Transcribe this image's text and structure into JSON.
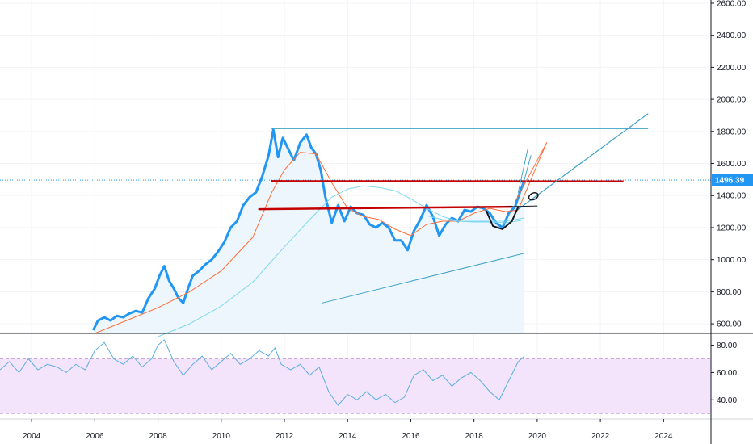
{
  "colors": {
    "price_line": "#2196f3",
    "ma_fast": "#ff6d3a",
    "ma_slow": "#7fd8ee",
    "resistance": "#c40000",
    "trendline": "#3fa2c8",
    "rsi_line": "#5aaee0",
    "rsi_band": "#f3e4fb",
    "rsi_band_border": "#c9a9d8",
    "current_price_label_bg": "#2196f3",
    "area_fill": "#eef6fd",
    "grid": "#f1f3f6",
    "current_price_dotted": "#2196f3"
  },
  "chart_data": [
    {
      "type": "line",
      "panel": "price",
      "x_axis": {
        "ticks": [
          "2004",
          "2006",
          "2008",
          "2010",
          "2012",
          "2014",
          "2016",
          "2018",
          "2020",
          "2022",
          "2024"
        ],
        "range": [
          2003.0,
          2025.5
        ]
      },
      "y_axis": {
        "position": "right",
        "range": [
          540,
          2620
        ],
        "ticks": [
          "600.00",
          "800.00",
          "1000.00",
          "1200.00",
          "1400.00",
          "1600.00",
          "1800.00",
          "2000.00",
          "2200.00",
          "2400.00",
          "2600.00"
        ],
        "tick_values": [
          600,
          800,
          1000,
          1200,
          1400,
          1600,
          1800,
          2000,
          2200,
          2400,
          2600
        ]
      },
      "current_price": {
        "label": "1496.39",
        "value": 1496.39
      },
      "series": [
        {
          "id": "price",
          "x": [
            2005.95,
            2006.1,
            2006.3,
            2006.5,
            2006.7,
            2006.9,
            2007.1,
            2007.3,
            2007.5,
            2007.7,
            2007.9,
            2008.05,
            2008.2,
            2008.35,
            2008.5,
            2008.65,
            2008.8,
            2008.95,
            2009.1,
            2009.3,
            2009.5,
            2009.7,
            2009.9,
            2010.1,
            2010.3,
            2010.5,
            2010.7,
            2010.9,
            2011.1,
            2011.3,
            2011.5,
            2011.65,
            2011.8,
            2011.95,
            2012.1,
            2012.3,
            2012.5,
            2012.7,
            2012.85,
            2013.0,
            2013.15,
            2013.3,
            2013.5,
            2013.7,
            2013.9,
            2014.1,
            2014.3,
            2014.5,
            2014.7,
            2014.9,
            2015.1,
            2015.3,
            2015.5,
            2015.7,
            2015.9,
            2016.1,
            2016.3,
            2016.5,
            2016.7,
            2016.9,
            2017.1,
            2017.3,
            2017.5,
            2017.7,
            2017.9,
            2018.1,
            2018.3,
            2018.5,
            2018.7,
            2018.9,
            2019.1,
            2019.3,
            2019.45,
            2019.6
          ],
          "y": [
            560,
            620,
            640,
            620,
            650,
            640,
            665,
            680,
            670,
            760,
            820,
            900,
            960,
            870,
            820,
            760,
            730,
            820,
            900,
            930,
            970,
            1000,
            1050,
            1110,
            1200,
            1240,
            1340,
            1390,
            1420,
            1520,
            1650,
            1810,
            1640,
            1760,
            1700,
            1620,
            1730,
            1780,
            1700,
            1660,
            1560,
            1390,
            1230,
            1340,
            1240,
            1330,
            1290,
            1280,
            1220,
            1200,
            1230,
            1200,
            1120,
            1120,
            1060,
            1180,
            1250,
            1340,
            1270,
            1150,
            1220,
            1260,
            1240,
            1310,
            1300,
            1330,
            1320,
            1290,
            1230,
            1200,
            1290,
            1330,
            1420,
            1496
          ]
        },
        {
          "id": "ma_fast",
          "x": [
            2006.0,
            2007.0,
            2008.0,
            2009.0,
            2010.0,
            2011.0,
            2011.6,
            2012.0,
            2012.5,
            2013.0,
            2013.5,
            2014.0,
            2014.5,
            2015.0,
            2015.5,
            2016.0,
            2016.5,
            2017.0,
            2017.5,
            2018.0,
            2018.5,
            2019.0,
            2019.4,
            2019.8,
            2020.3
          ],
          "y": [
            540,
            620,
            700,
            800,
            930,
            1140,
            1420,
            1560,
            1670,
            1660,
            1480,
            1320,
            1270,
            1250,
            1190,
            1150,
            1220,
            1240,
            1240,
            1290,
            1320,
            1300,
            1310,
            1500,
            1730
          ]
        },
        {
          "id": "ma_slow",
          "x": [
            2008.0,
            2009.0,
            2010.0,
            2011.0,
            2012.0,
            2012.8,
            2013.5,
            2014.0,
            2014.5,
            2015.0,
            2015.5,
            2016.0,
            2016.5,
            2017.0,
            2017.5,
            2018.0,
            2018.5,
            2019.0,
            2019.6
          ],
          "y": [
            520,
            600,
            710,
            860,
            1080,
            1250,
            1390,
            1440,
            1460,
            1450,
            1430,
            1380,
            1320,
            1270,
            1240,
            1240,
            1240,
            1240,
            1260
          ]
        },
        {
          "id": "ma_slow_short",
          "x": [
            2016.5,
            2017.0,
            2017.5,
            2018.0,
            2018.5,
            2019.0,
            2019.5
          ],
          "y": [
            1275,
            1250,
            1240,
            1235,
            1235,
            1230,
            1245
          ]
        }
      ],
      "drawings": [
        {
          "id": "horizontal-1815",
          "x": [
            2011.6,
            2023.5
          ],
          "y": [
            1817,
            1817
          ]
        },
        {
          "id": "resistance-upper",
          "x": [
            2011.6,
            2022.7
          ],
          "y": [
            1490,
            1488
          ]
        },
        {
          "id": "resistance-lower",
          "x": [
            2011.2,
            2019.2
          ],
          "y": [
            1315,
            1330
          ]
        },
        {
          "id": "rising-trendline",
          "x": [
            2013.2,
            2019.6
          ],
          "y": [
            730,
            1040
          ]
        },
        {
          "id": "long-breakout-line",
          "x": [
            2019.3,
            2023.5
          ],
          "y": [
            1300,
            1910
          ]
        },
        {
          "id": "short-steep-line",
          "x": [
            2019.3,
            2020.3
          ],
          "y": [
            1360,
            1730
          ]
        },
        {
          "id": "short-ray",
          "x": [
            2019.0,
            2020.0
          ],
          "y": [
            1330,
            1335
          ]
        },
        {
          "id": "cup-curve",
          "x": [
            2018.4,
            2018.6,
            2018.9,
            2019.2,
            2019.4
          ],
          "y": [
            1300,
            1210,
            1190,
            1240,
            1330
          ]
        },
        {
          "id": "spike-a",
          "x": [
            2019.4,
            2019.7
          ],
          "y": [
            1420,
            1690
          ]
        },
        {
          "id": "spike-b",
          "x": [
            2019.5,
            2019.8
          ],
          "y": [
            1430,
            1650
          ]
        },
        {
          "id": "marker-ellipse",
          "x": [
            2019.88
          ],
          "y": [
            1395
          ]
        }
      ]
    },
    {
      "type": "line",
      "panel": "rsi",
      "y_axis": {
        "position": "right",
        "range": [
          26,
          88
        ],
        "ticks": [
          "40.00",
          "60.00",
          "80.00"
        ],
        "tick_values": [
          40,
          60,
          80
        ]
      },
      "band": [
        30,
        70
      ],
      "series": [
        {
          "id": "rsi",
          "x": [
            2003.0,
            2003.3,
            2003.6,
            2003.9,
            2004.2,
            2004.5,
            2004.8,
            2005.1,
            2005.4,
            2005.7,
            2006.0,
            2006.3,
            2006.6,
            2006.9,
            2007.2,
            2007.5,
            2007.8,
            2008.0,
            2008.2,
            2008.5,
            2008.8,
            2009.1,
            2009.4,
            2009.7,
            2010.0,
            2010.3,
            2010.6,
            2010.9,
            2011.2,
            2011.5,
            2011.7,
            2011.9,
            2012.2,
            2012.5,
            2012.8,
            2013.1,
            2013.4,
            2013.7,
            2014.0,
            2014.3,
            2014.6,
            2014.9,
            2015.2,
            2015.5,
            2015.8,
            2016.1,
            2016.4,
            2016.7,
            2017.0,
            2017.3,
            2017.6,
            2017.9,
            2018.2,
            2018.5,
            2018.8,
            2019.1,
            2019.4,
            2019.6
          ],
          "y": [
            62,
            68,
            60,
            70,
            62,
            66,
            64,
            60,
            66,
            62,
            76,
            82,
            70,
            66,
            72,
            64,
            70,
            80,
            84,
            68,
            58,
            66,
            72,
            62,
            68,
            74,
            66,
            70,
            76,
            72,
            78,
            66,
            62,
            66,
            58,
            64,
            46,
            36,
            44,
            40,
            46,
            40,
            44,
            38,
            42,
            58,
            62,
            54,
            58,
            50,
            56,
            60,
            54,
            46,
            40,
            54,
            68,
            72
          ]
        }
      ]
    }
  ],
  "icons": {
    "marker": "ellipse-marker-icon"
  }
}
